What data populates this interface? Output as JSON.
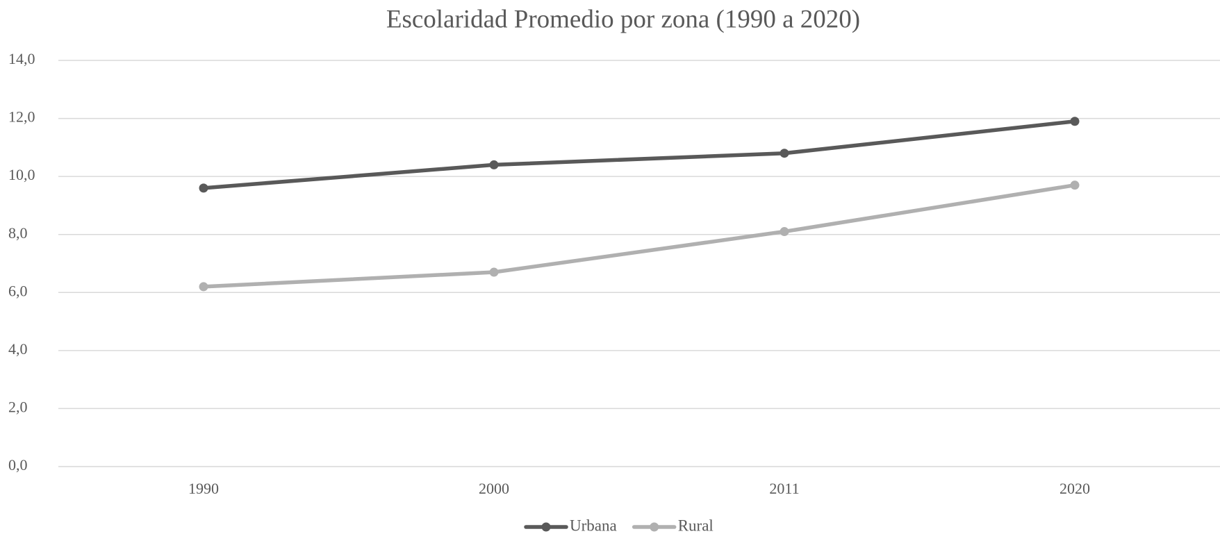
{
  "chart_data": {
    "type": "line",
    "title": "Escolaridad Promedio por zona (1990 a 2020)",
    "categories": [
      "1990",
      "2000",
      "2011",
      "2020"
    ],
    "series": [
      {
        "name": "Urbana",
        "color": "#595959",
        "values": [
          9.6,
          10.4,
          10.8,
          11.9
        ]
      },
      {
        "name": "Rural",
        "color": "#b0b0b0",
        "values": [
          6.2,
          6.7,
          8.1,
          9.7
        ]
      }
    ],
    "ylim": [
      0,
      14
    ],
    "yticks": [
      {
        "value": 0,
        "label": "0,0"
      },
      {
        "value": 2,
        "label": "2,0"
      },
      {
        "value": 4,
        "label": "4,0"
      },
      {
        "value": 6,
        "label": "6,0"
      },
      {
        "value": 8,
        "label": "8,0"
      },
      {
        "value": 10,
        "label": "10,0"
      },
      {
        "value": 12,
        "label": "12,0"
      },
      {
        "value": 14,
        "label": "14,0"
      }
    ],
    "grid": true,
    "legend": "bottom"
  }
}
